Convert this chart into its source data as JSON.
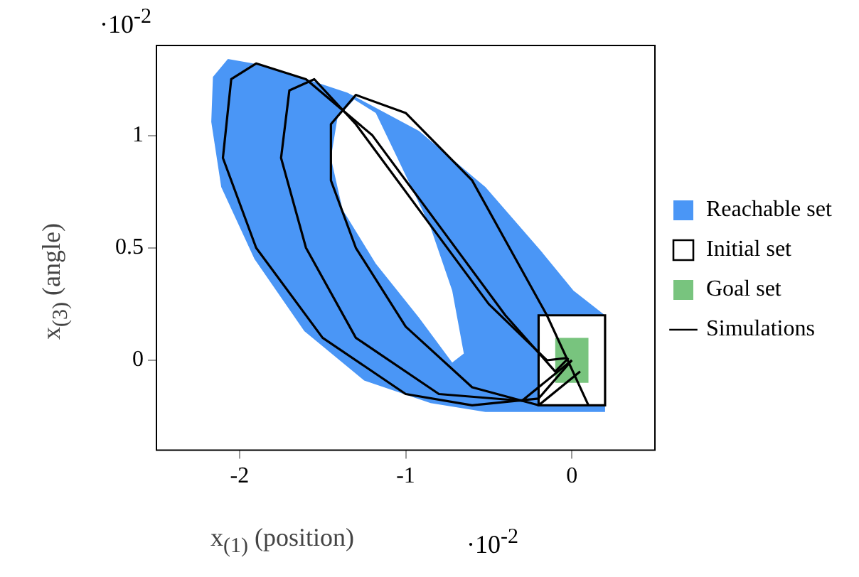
{
  "chart_data": {
    "type": "line",
    "xlabel": "x$_{(1)}$ (position)",
    "ylabel": "x$_{(3)}$ (angle)",
    "annotations": [
      "·10$^{-2}$",
      "·10$^{-2}$"
    ],
    "xlim": [
      -2.5,
      0.5
    ],
    "xticks": [
      -2,
      -1,
      0
    ],
    "ylim": [
      -0.4,
      1.4
    ],
    "yticks": [
      0,
      0.5,
      1
    ],
    "grid": false,
    "legend": "right",
    "marker": "none",
    "line_style": "solid",
    "series": [
      {
        "name": "Reachable set",
        "type": "area",
        "color": "#4a96f6",
        "x": [
          -2.07,
          -1.84,
          -1.35,
          -0.92,
          -0.52,
          -0.19,
          0.01,
          0.2,
          0.2,
          -0.22,
          -0.52,
          -0.85,
          -1.25,
          -1.61,
          -1.91,
          -2.11,
          -2.17,
          -2.16,
          -2.07,
          null,
          -1.31,
          -1.41,
          -1.45,
          -1.38,
          -1.18,
          -0.92,
          -0.72,
          -0.65,
          -0.72,
          -0.85,
          -1.05,
          -1.18,
          -1.31
        ],
        "values": [
          1.34,
          1.31,
          1.19,
          1.02,
          0.77,
          0.49,
          0.31,
          0.2,
          -0.23,
          -0.23,
          -0.23,
          -0.19,
          -0.09,
          0.13,
          0.45,
          0.77,
          1.06,
          1.26,
          1.34,
          null,
          1.16,
          1.08,
          0.9,
          0.67,
          0.43,
          0.19,
          -0.01,
          0.03,
          0.31,
          0.59,
          0.9,
          1.1,
          1.16
        ]
      },
      {
        "name": "Initial set",
        "type": "area",
        "color": "#ffffff",
        "x": [
          -0.2,
          0.2,
          0.2,
          -0.2,
          -0.2
        ],
        "values": [
          -0.2,
          -0.2,
          0.2,
          0.2,
          -0.2
        ]
      },
      {
        "name": "Goal set",
        "type": "area",
        "color": "#78c47e",
        "x": [
          -0.1,
          0.1,
          0.1,
          -0.1,
          -0.1
        ],
        "values": [
          -0.1,
          -0.1,
          0.1,
          0.1,
          -0.1
        ]
      },
      {
        "name": "Simulations",
        "type": "line",
        "color": "#000000",
        "x": [
          0,
          -0.2,
          -0.6,
          -1.0,
          -1.5,
          -1.9,
          -2.1,
          -2.05,
          -1.9,
          -1.6,
          -1.2,
          -0.8,
          -0.4,
          -0.1,
          -0.02
        ],
        "values": [
          0,
          -0.17,
          -0.2,
          -0.15,
          0.1,
          0.5,
          0.9,
          1.25,
          1.32,
          1.25,
          1.0,
          0.6,
          0.2,
          -0.05,
          0.01
        ]
      },
      {
        "type": "line",
        "color": "#000000",
        "x": [
          0,
          -0.3,
          -0.8,
          -1.3,
          -1.6,
          -1.75,
          -1.7,
          -1.55,
          -1.3,
          -0.9,
          -0.5,
          -0.15,
          -0.03
        ],
        "values": [
          0,
          -0.18,
          -0.15,
          0.1,
          0.5,
          0.9,
          1.2,
          1.25,
          1.05,
          0.65,
          0.25,
          0,
          0.01
        ]
      },
      {
        "type": "line",
        "color": "#000000",
        "x": [
          0.05,
          -0.2,
          -0.6,
          -1.0,
          -1.3,
          -1.45,
          -1.45,
          -1.3,
          -1.0,
          -0.6,
          -0.15,
          0.1
        ],
        "values": [
          -0.05,
          -0.2,
          -0.12,
          0.15,
          0.5,
          0.8,
          1.05,
          1.18,
          1.1,
          0.8,
          0.2,
          -0.2
        ]
      }
    ]
  }
}
